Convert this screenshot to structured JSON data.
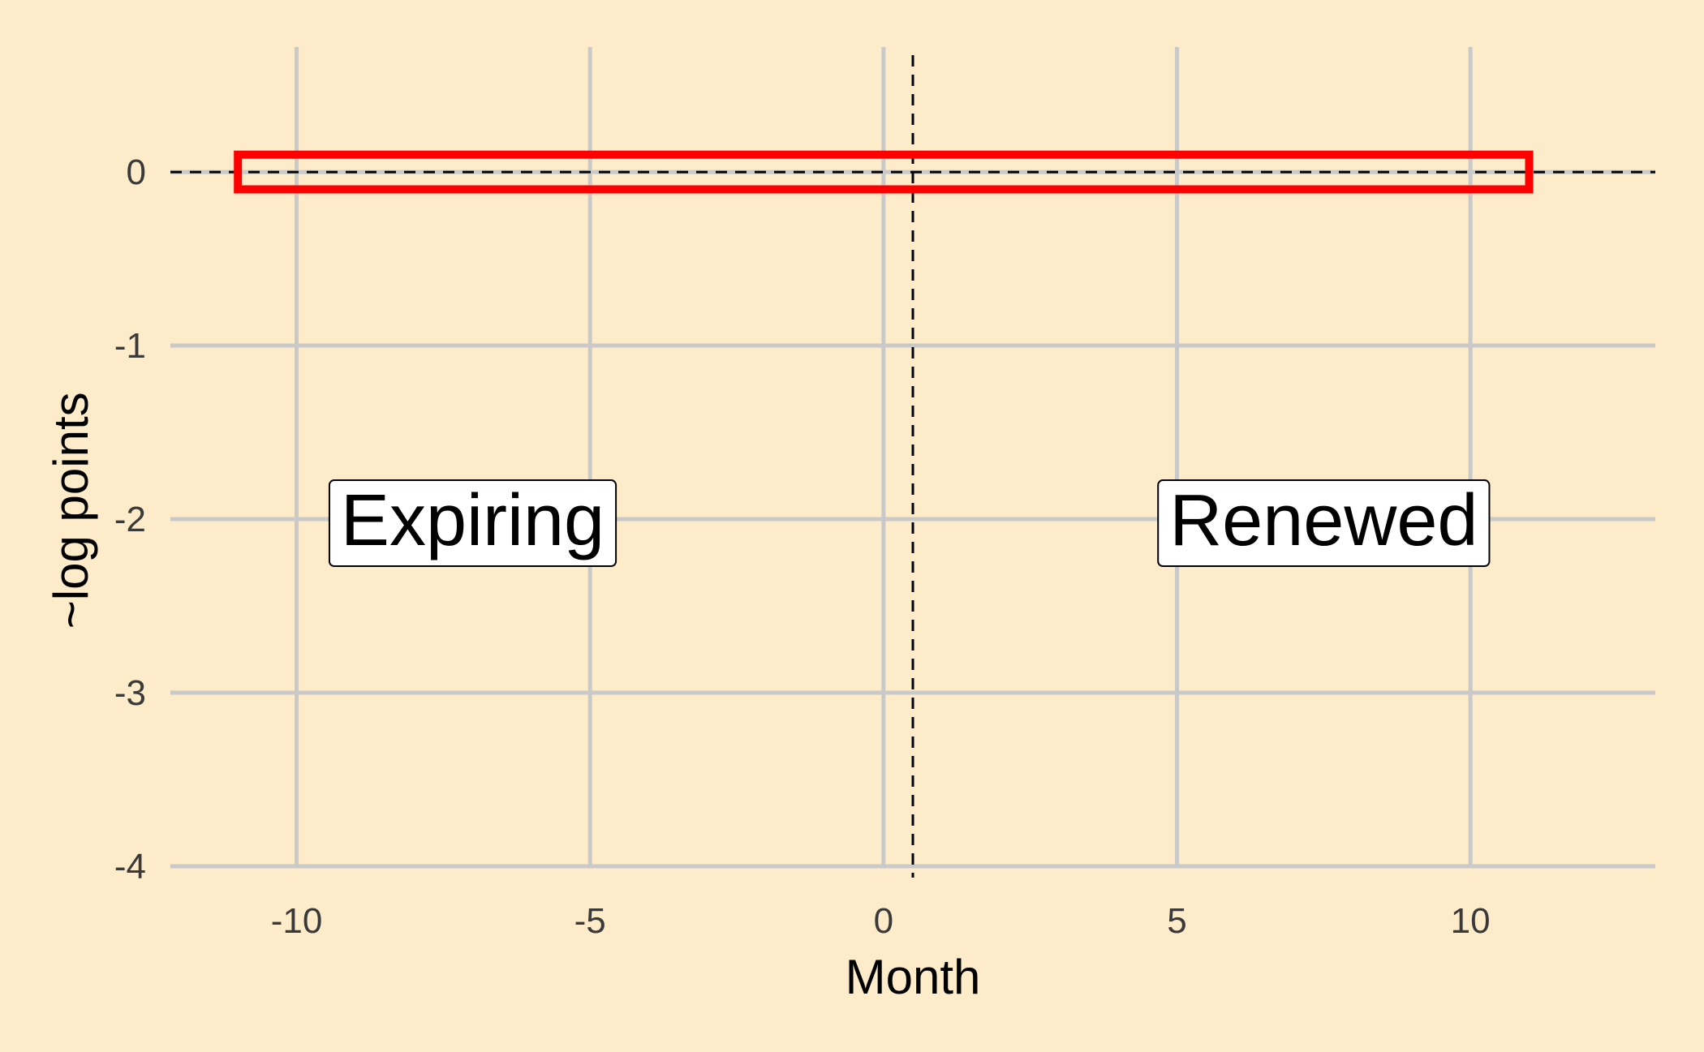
{
  "chart_data": {
    "type": "line",
    "xlabel": "Month",
    "ylabel": "~log points",
    "xlim": [
      -12.15,
      13.15
    ],
    "ylim": [
      -4.0,
      0.72
    ],
    "x_ticks": [
      -10,
      -5,
      0,
      5,
      10
    ],
    "y_ticks": [
      0,
      -1,
      -2,
      -3,
      -4
    ],
    "x_tick_labels": [
      "-10",
      "-5",
      "0",
      "5",
      "10"
    ],
    "y_tick_labels": [
      "0",
      "-1",
      "-2",
      "-3",
      "-4"
    ],
    "grid": true,
    "reference_lines": {
      "horizontal_y": 0,
      "vertical_x": 0.5,
      "style": "dashed"
    },
    "highlight_box": {
      "x": [
        -11,
        11
      ],
      "y": [
        -0.1,
        0.1
      ],
      "color": "#ff0000"
    },
    "annotations": [
      {
        "text": "Expiring",
        "x": -7,
        "y": -2
      },
      {
        "text": "Renewed",
        "x": 7.5,
        "y": -2
      }
    ],
    "colors": {
      "background": "#fdebc9",
      "grid": "#c9c9c9",
      "highlight": "#ff0000",
      "reference": "#000000"
    }
  }
}
